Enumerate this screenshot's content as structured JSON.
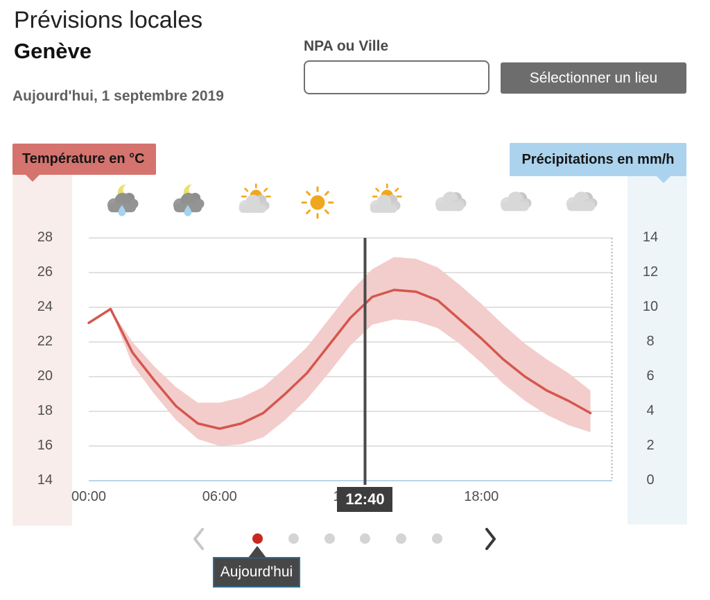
{
  "header": {
    "title": "Prévisions locales",
    "location": "Genève",
    "date": "Aujourd'hui, 1 septembre 2019"
  },
  "search": {
    "label": "NPA ou Ville",
    "value": "",
    "button_label": "Sélectionner un lieu"
  },
  "chart_data": {
    "type": "line",
    "temp_axis": {
      "label": "Température en °C",
      "range": [
        14,
        28
      ],
      "ticks": [
        28,
        26,
        24,
        22,
        20,
        18,
        16,
        14
      ]
    },
    "precip_axis": {
      "label": "Précipitations en mm/h",
      "range": [
        0,
        14
      ],
      "ticks": [
        14,
        12,
        10,
        8,
        6,
        4,
        2,
        0
      ]
    },
    "x_domain_hours": [
      0,
      24
    ],
    "x_ticks": [
      {
        "hour": 0,
        "label": "00:00"
      },
      {
        "hour": 6,
        "label": "06:00"
      },
      {
        "hour": 12,
        "label": "12:00"
      },
      {
        "hour": 18,
        "label": "18:00"
      }
    ],
    "now": {
      "hour": 12.667,
      "label": "12:40"
    },
    "hours": [
      0,
      1,
      2,
      3,
      4,
      5,
      6,
      7,
      8,
      9,
      10,
      11,
      12,
      13,
      14,
      15,
      16,
      17,
      18,
      19,
      20,
      21,
      22,
      23
    ],
    "series": [
      {
        "name": "temperature",
        "values": [
          23.1,
          23.9,
          21.4,
          19.8,
          18.3,
          17.3,
          17.0,
          17.3,
          17.9,
          19.0,
          20.2,
          21.8,
          23.4,
          24.6,
          25.0,
          24.9,
          24.4,
          23.3,
          22.2,
          21.0,
          20.0,
          19.2,
          18.6,
          17.9
        ]
      },
      {
        "name": "uncertainty-upper",
        "values": [
          23.1,
          23.9,
          22.0,
          20.6,
          19.4,
          18.5,
          18.5,
          18.8,
          19.4,
          20.5,
          21.7,
          23.3,
          24.9,
          26.2,
          26.9,
          26.8,
          26.3,
          25.3,
          24.2,
          23.0,
          21.9,
          21.0,
          20.2,
          19.2
        ]
      },
      {
        "name": "uncertainty-lower",
        "values": [
          23.1,
          23.9,
          20.7,
          19.0,
          17.5,
          16.4,
          16.0,
          16.1,
          16.5,
          17.5,
          18.7,
          20.2,
          21.8,
          23.0,
          23.3,
          23.2,
          22.8,
          21.9,
          20.8,
          19.6,
          18.6,
          17.8,
          17.2,
          16.8
        ]
      }
    ],
    "weather_icons": [
      "moon-rain-cloud-icon",
      "moon-rain-cloud-icon",
      "sun-cloud-icon",
      "sun-icon",
      "sun-cloud-icon",
      "cloud-icon",
      "cloud-icon",
      "cloud-icon"
    ],
    "grid": true,
    "legend_position": "none"
  },
  "pagination": {
    "dot_count": 6,
    "active_index": 0,
    "prev_icon": "chevron-left-icon",
    "next_icon": "chevron-right-icon",
    "tooltip": "Aujourd'hui"
  },
  "colors": {
    "badge_red": "#d5736e",
    "strip_pink": "#f9edec",
    "band_pink": "#f3cdcb",
    "line_red": "#d4574e",
    "badge_blue": "#abd3ee",
    "strip_blue": "#edf5f9",
    "grid_gray": "#cfcfcf",
    "grid_blue": "#bad4e7",
    "dotted_border": "#b5b5b5",
    "now_line": "#4a4a4a",
    "dark_badge": "#3d3d3d",
    "button_gray": "#6d6d6d",
    "dot_red": "#c9281e",
    "dot_gray": "#d4d4d4",
    "chevron_disabled": "#c8c8c8",
    "chevron_enabled": "#383838",
    "tooltip_bg": "#474747",
    "tooltip_border": "#2e6d91"
  }
}
